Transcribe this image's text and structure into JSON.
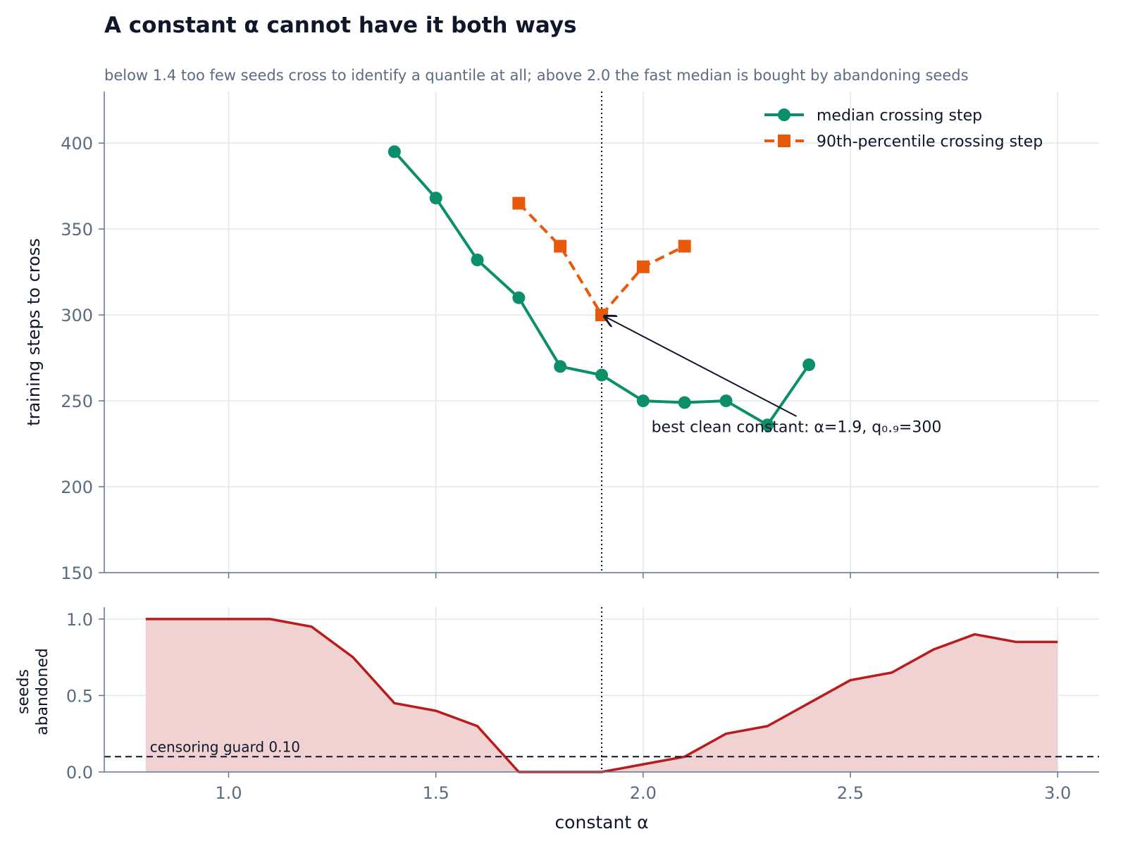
{
  "title": "A constant α cannot have it both ways",
  "subtitle": "below 1.4 too few seeds cross to identify a quantile at all; above 2.0 the fast median is bought by abandoning seeds",
  "colors": {
    "median": "#0b8f6a",
    "p90": "#e8590c",
    "abandoned_line": "#b91c1c",
    "abandoned_fill": "#f0d2d2",
    "grid": "#e2e8f0",
    "axis": "#64748b",
    "text_dark": "#0f172a",
    "tick_text": "#5b6b82"
  },
  "chart_data": [
    {
      "type": "line",
      "xlabel": "",
      "ylabel": "training steps to cross",
      "xlim": [
        0.7,
        3.1
      ],
      "ylim": [
        150,
        430
      ],
      "xticks": [
        1.0,
        1.5,
        2.0,
        2.5,
        3.0
      ],
      "yticks": [
        150,
        200,
        250,
        300,
        350,
        400
      ],
      "grid": true,
      "legend_position": "top-right",
      "series": [
        {
          "name": "median crossing step",
          "marker": "circle",
          "style": "solid",
          "x": [
            1.4,
            1.5,
            1.6,
            1.7,
            1.8,
            1.9,
            2.0,
            2.1,
            2.2,
            2.3,
            2.4
          ],
          "y": [
            395,
            368,
            332,
            310,
            270,
            265,
            250,
            249,
            250,
            236,
            271
          ]
        },
        {
          "name": "90th-percentile crossing step",
          "marker": "square",
          "style": "dashed",
          "x": [
            1.7,
            1.8,
            1.9,
            2.0,
            2.1
          ],
          "y": [
            365,
            340,
            300,
            328,
            340
          ]
        }
      ],
      "vline": {
        "x": 1.9,
        "style": "dotted"
      },
      "annotation": {
        "text": "best clean constant: α=1.9, q₀.₉=300",
        "point": [
          1.9,
          300
        ],
        "text_at": [
          2.02,
          231
        ]
      }
    },
    {
      "type": "area",
      "xlabel": "constant α",
      "ylabel": "seeds abandoned",
      "ylabel_lines": [
        "seeds",
        "abandoned"
      ],
      "xlim": [
        0.7,
        3.1
      ],
      "ylim": [
        0,
        1.05
      ],
      "xticks": [
        1.0,
        1.5,
        2.0,
        2.5,
        3.0
      ],
      "xtick_labels": [
        "1.0",
        "1.5",
        "2.0",
        "2.5",
        "3.0"
      ],
      "yticks": [
        0.0,
        0.5,
        1.0
      ],
      "ytick_labels": [
        "0.0",
        "0.5",
        "1.0"
      ],
      "grid": true,
      "x": [
        0.8,
        0.9,
        1.0,
        1.1,
        1.2,
        1.3,
        1.4,
        1.5,
        1.6,
        1.7,
        1.8,
        1.9,
        2.0,
        2.1,
        2.2,
        2.3,
        2.4,
        2.5,
        2.6,
        2.7,
        2.8,
        2.9,
        3.0
      ],
      "y": [
        1.0,
        1.0,
        1.0,
        1.0,
        0.95,
        0.75,
        0.45,
        0.4,
        0.3,
        0.0,
        0.0,
        0.0,
        0.05,
        0.1,
        0.25,
        0.3,
        0.45,
        0.6,
        0.65,
        0.8,
        0.9,
        0.85,
        0.85
      ],
      "guard": {
        "y": 0.1,
        "label": "censoring guard 0.10",
        "style": "dashed"
      },
      "vline": {
        "x": 1.9,
        "style": "dotted"
      }
    }
  ]
}
